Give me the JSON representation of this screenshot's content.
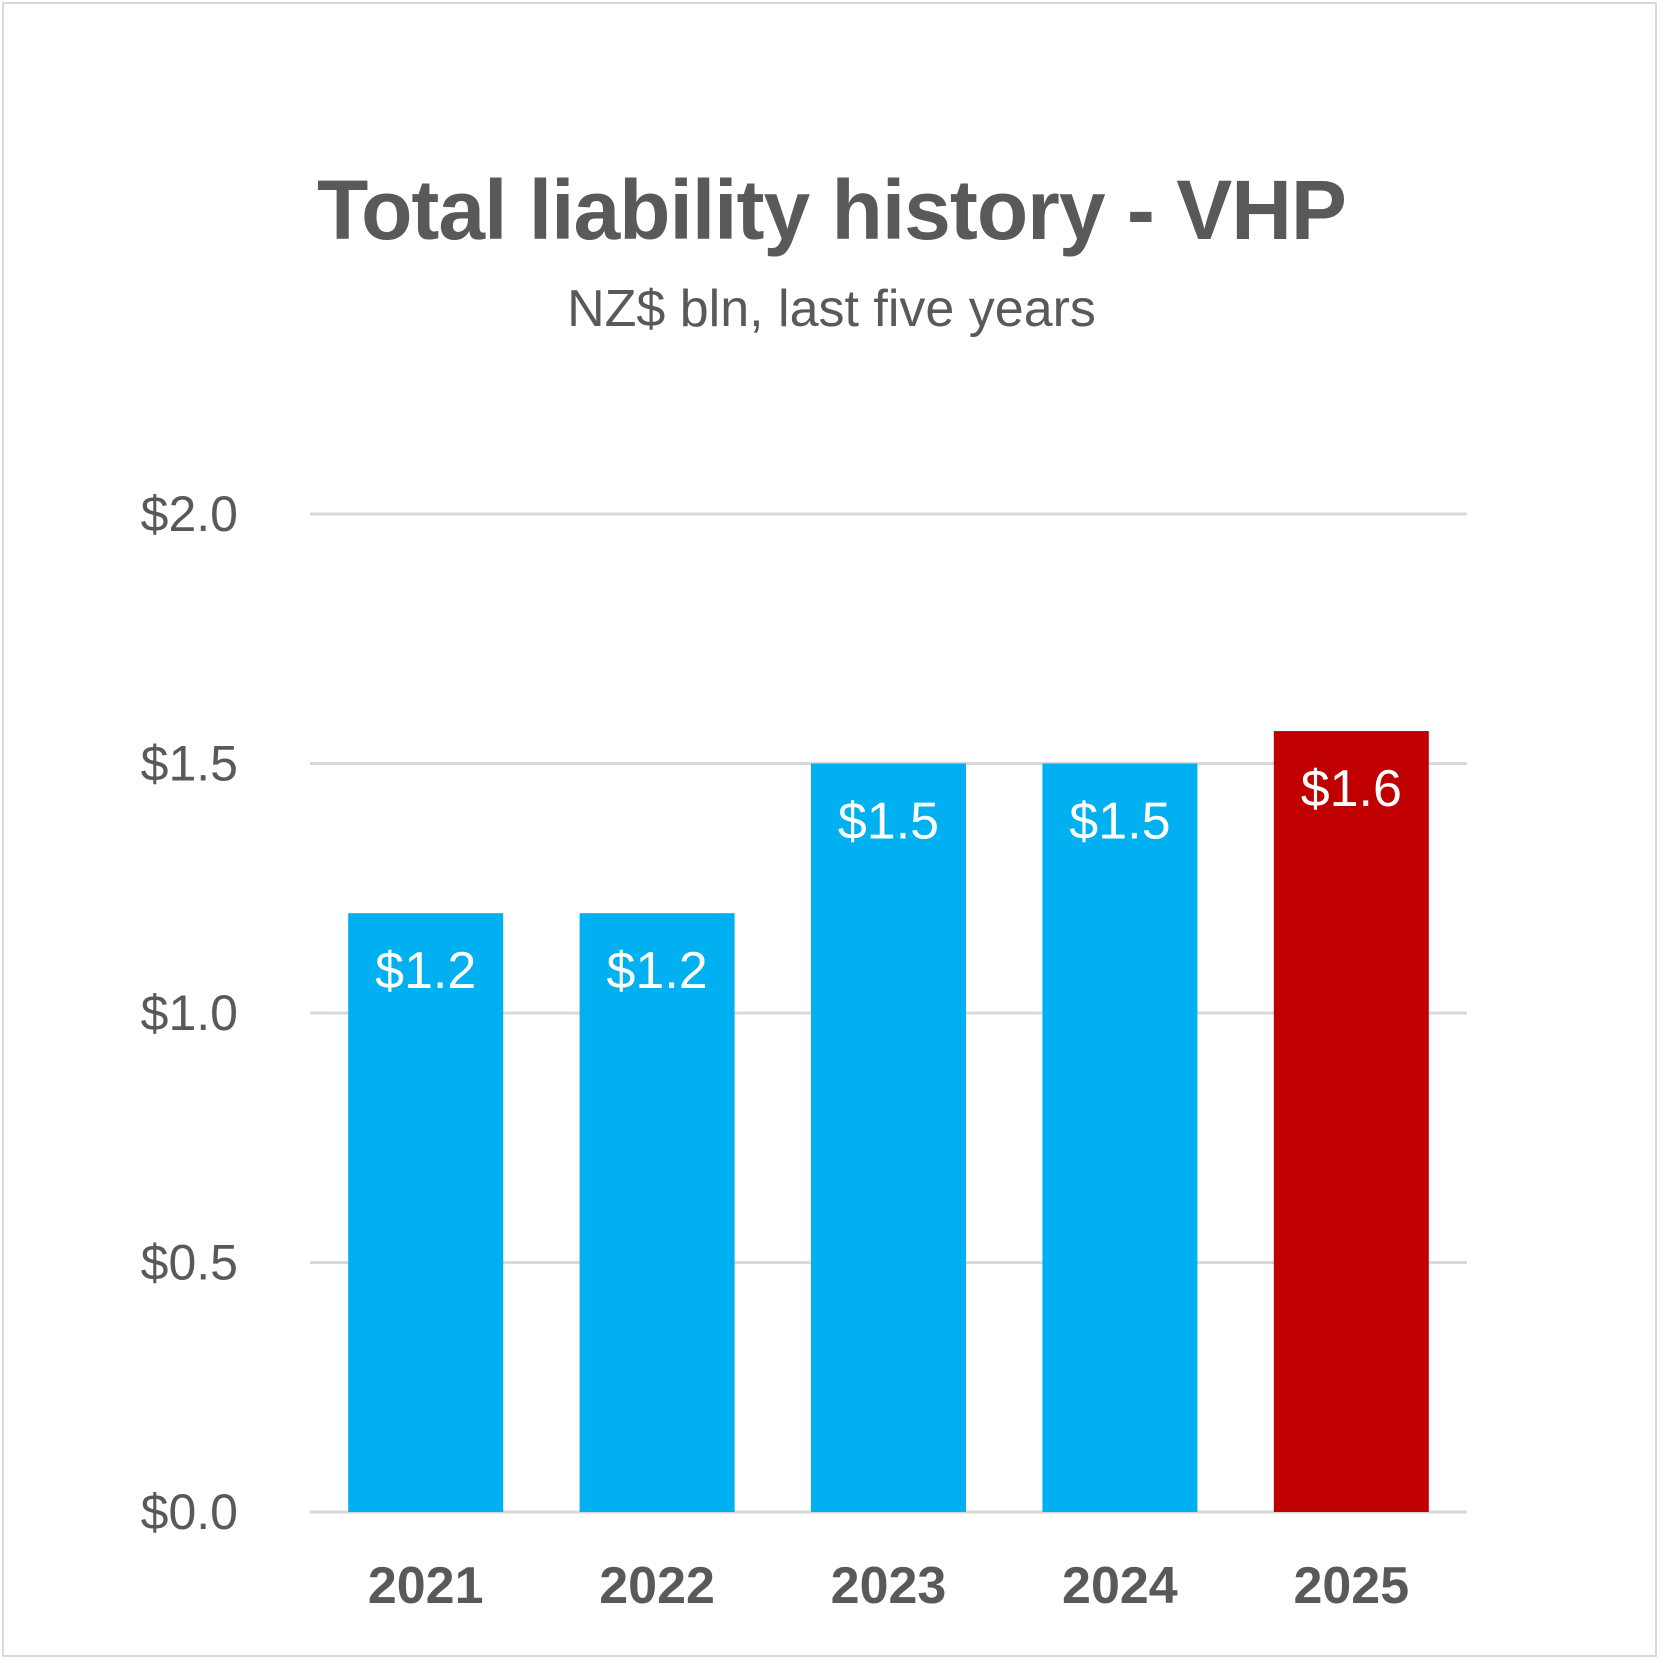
{
  "chart_data": {
    "type": "bar",
    "title": "Total liability history - VHP",
    "subtitle": "NZ$ bln, last five years",
    "xlabel": "",
    "ylabel": "",
    "categories": [
      "2021",
      "2022",
      "2023",
      "2024",
      "2025"
    ],
    "values": [
      1.2,
      1.2,
      1.5,
      1.5,
      1.565
    ],
    "data_labels": [
      "$1.2",
      "$1.2",
      "$1.5",
      "$1.5",
      "$1.6"
    ],
    "bar_colors": [
      "#00b0f0",
      "#00b0f0",
      "#00b0f0",
      "#00b0f0",
      "#c00000"
    ],
    "ylim": [
      0,
      2.0
    ],
    "yticks": [
      0,
      0.5,
      1.0,
      1.5,
      2.0
    ],
    "ytick_labels": [
      "$0.0",
      "$0.5",
      "$1.0",
      "$1.5",
      "$2.0"
    ],
    "grid": true,
    "gridline_color": "#d9d9d9",
    "text_color": "#595959",
    "legend": "none"
  }
}
